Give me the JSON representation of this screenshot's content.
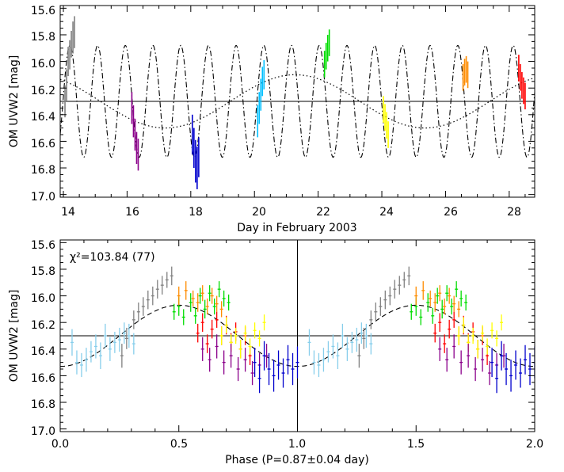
{
  "chart_data": [
    {
      "type": "line",
      "panel": "top",
      "xlabel": "Day in February 2003",
      "ylabel": "OM UVW2 [mag]",
      "xlim": [
        13.9,
        28.8
      ],
      "ylim": [
        17.02,
        15.58
      ],
      "y_inverted": true,
      "xticks": [
        "14",
        "16",
        "18",
        "20",
        "22",
        "24",
        "26",
        "28"
      ],
      "yticks": [
        "15.6",
        "15.8",
        "16.0",
        "16.2",
        "16.4",
        "16.6",
        "16.8",
        "17.0"
      ],
      "reference_line_mag": 16.3,
      "model_short": {
        "mean": 16.3,
        "amplitude": 0.42,
        "period_day": 0.87,
        "phase_zero_day": 13.77,
        "style": "dash-dot"
      },
      "model_long": {
        "mean": 16.3,
        "amplitude": 0.2,
        "period_day": 8.15,
        "min_day": 17.2,
        "style": "dotted"
      },
      "series": [
        {
          "color": "#808080",
          "x": [
            14.05,
            14.1,
            14.15,
            14.2,
            14.25,
            14.3,
            14.35
          ],
          "y": [
            16.3,
            16.18,
            16.0,
            15.95,
            15.87,
            15.82,
            15.78
          ],
          "err": [
            0.12,
            0.12,
            0.11,
            0.11,
            0.1,
            0.12,
            0.12
          ]
        },
        {
          "color": "#8b008b",
          "x": [
            16.15,
            16.2,
            16.25,
            16.3,
            16.35
          ],
          "y": [
            16.35,
            16.45,
            16.55,
            16.65,
            16.7
          ],
          "err": [
            0.12,
            0.12,
            0.12,
            0.12,
            0.12
          ]
        },
        {
          "color": "#0000cd",
          "x": [
            18.05,
            18.1,
            18.15,
            18.2,
            18.25
          ],
          "y": [
            16.55,
            16.65,
            16.75,
            16.8,
            16.72
          ],
          "err": [
            0.15,
            0.15,
            0.16,
            0.16,
            0.15
          ]
        },
        {
          "color": "#00bfff",
          "x": [
            20.1,
            20.15,
            20.2,
            20.25,
            20.3
          ],
          "y": [
            16.45,
            16.35,
            16.25,
            16.15,
            16.1
          ],
          "err": [
            0.12,
            0.12,
            0.12,
            0.11,
            0.11
          ]
        },
        {
          "color": "#00dd00",
          "x": [
            22.2,
            22.25,
            22.3,
            22.35
          ],
          "y": [
            16.02,
            15.96,
            15.9,
            15.86
          ],
          "err": [
            0.1,
            0.1,
            0.1,
            0.1
          ]
        },
        {
          "color": "#ffff00",
          "x": [
            24.05,
            24.1,
            24.15,
            24.2
          ],
          "y": [
            16.36,
            16.42,
            16.48,
            16.55
          ],
          "err": [
            0.1,
            0.1,
            0.1,
            0.1
          ]
        },
        {
          "color": "#ff8c00",
          "x": [
            26.55,
            26.6,
            26.65,
            26.7
          ],
          "y": [
            16.12,
            16.08,
            16.06,
            16.1
          ],
          "err": [
            0.1,
            0.1,
            0.1,
            0.1
          ]
        },
        {
          "color": "#ff0000",
          "x": [
            28.3,
            28.35,
            28.4,
            28.45,
            28.5
          ],
          "y": [
            16.05,
            16.12,
            16.18,
            16.22,
            16.26
          ],
          "err": [
            0.1,
            0.1,
            0.1,
            0.1,
            0.1
          ]
        }
      ]
    },
    {
      "type": "scatter",
      "panel": "bottom",
      "xlabel": "Phase (P=0.87±0.04 day)",
      "ylabel": "OM UVW2 [mag]",
      "annotation": "χ²=103.84  (77)",
      "xlim": [
        0.0,
        2.0
      ],
      "ylim": [
        17.02,
        15.58
      ],
      "y_inverted": true,
      "xticks": [
        "0.0",
        "0.5",
        "1.0",
        "1.5",
        "2.0"
      ],
      "yticks": [
        "15.6",
        "15.8",
        "16.0",
        "16.2",
        "16.4",
        "16.6",
        "16.8",
        "17.0"
      ],
      "reference_line_mag": 16.3,
      "reference_line_phase": 1.0,
      "model": {
        "mean": 16.3,
        "amplitude": 0.23,
        "max_phase": 0.5,
        "style": "dashed"
      },
      "series": [
        {
          "color": "#87ceeb",
          "x": [
            0.05,
            0.07,
            0.09,
            0.11,
            0.13,
            0.15,
            0.17,
            0.19,
            0.21,
            0.23,
            0.25,
            0.27,
            0.29,
            0.31
          ],
          "y": [
            16.35,
            16.5,
            16.52,
            16.48,
            16.42,
            16.38,
            16.45,
            16.3,
            16.4,
            16.35,
            16.33,
            16.28,
            16.3,
            16.36
          ],
          "err": [
            0.1,
            0.09,
            0.09,
            0.09,
            0.08,
            0.09,
            0.1,
            0.09,
            0.09,
            0.08,
            0.09,
            0.08,
            0.09,
            0.08
          ]
        },
        {
          "color": "#808080",
          "x": [
            0.26,
            0.28,
            0.31,
            0.33,
            0.35,
            0.37,
            0.39,
            0.41,
            0.43,
            0.45,
            0.47
          ],
          "y": [
            16.45,
            16.32,
            16.18,
            16.12,
            16.08,
            16.03,
            16.0,
            15.95,
            15.92,
            15.88,
            15.85
          ],
          "err": [
            0.09,
            0.08,
            0.07,
            0.07,
            0.07,
            0.07,
            0.07,
            0.07,
            0.07,
            0.06,
            0.07
          ]
        },
        {
          "color": "#00dd00",
          "x": [
            0.48,
            0.5,
            0.52,
            0.55,
            0.57,
            0.59,
            0.61,
            0.63,
            0.65,
            0.67,
            0.69,
            0.71
          ],
          "y": [
            16.12,
            16.08,
            16.16,
            16.05,
            16.15,
            16.0,
            16.1,
            15.98,
            16.08,
            15.95,
            16.02,
            16.05
          ],
          "err": [
            0.06,
            0.07,
            0.06,
            0.07,
            0.06,
            0.06,
            0.07,
            0.06,
            0.06,
            0.06,
            0.06,
            0.06
          ]
        },
        {
          "color": "#ff8c00",
          "x": [
            0.5,
            0.53,
            0.56,
            0.58,
            0.6,
            0.62,
            0.64,
            0.66,
            0.68
          ],
          "y": [
            16.0,
            15.96,
            16.02,
            16.05,
            15.98,
            16.08,
            16.0,
            16.06,
            16.1
          ],
          "err": [
            0.07,
            0.07,
            0.06,
            0.07,
            0.06,
            0.06,
            0.06,
            0.06,
            0.06
          ]
        },
        {
          "color": "#ff0000",
          "x": [
            0.58,
            0.6,
            0.62,
            0.64,
            0.66,
            0.68,
            0.7,
            0.72,
            0.74,
            0.76,
            0.78,
            0.8
          ],
          "y": [
            16.28,
            16.2,
            16.36,
            16.25,
            16.18,
            16.3,
            16.22,
            16.35,
            16.27,
            16.4,
            16.3,
            16.45
          ],
          "err": [
            0.07,
            0.07,
            0.07,
            0.07,
            0.06,
            0.07,
            0.07,
            0.07,
            0.07,
            0.07,
            0.07,
            0.07
          ]
        },
        {
          "color": "#ffff00",
          "x": [
            0.68,
            0.7,
            0.72,
            0.74,
            0.76,
            0.78,
            0.8,
            0.82,
            0.84,
            0.86
          ],
          "y": [
            16.3,
            16.22,
            16.35,
            16.3,
            16.4,
            16.28,
            16.38,
            16.26,
            16.32,
            16.2
          ],
          "err": [
            0.07,
            0.06,
            0.06,
            0.06,
            0.07,
            0.06,
            0.06,
            0.06,
            0.06,
            0.06
          ]
        },
        {
          "color": "#8b008b",
          "x": [
            0.6,
            0.63,
            0.66,
            0.69,
            0.72,
            0.75,
            0.78,
            0.81,
            0.84,
            0.87
          ],
          "y": [
            16.4,
            16.48,
            16.38,
            16.5,
            16.45,
            16.55,
            16.48,
            16.58,
            16.52,
            16.45
          ],
          "err": [
            0.09,
            0.09,
            0.09,
            0.09,
            0.09,
            0.09,
            0.09,
            0.09,
            0.09,
            0.09
          ]
        },
        {
          "color": "#0000cd",
          "x": [
            0.82,
            0.84,
            0.86,
            0.88,
            0.9,
            0.92,
            0.94,
            0.96,
            0.98,
            1.0
          ],
          "y": [
            16.5,
            16.62,
            16.45,
            16.55,
            16.6,
            16.52,
            16.58,
            16.48,
            16.55,
            16.5
          ],
          "err": [
            0.11,
            0.11,
            0.11,
            0.12,
            0.12,
            0.11,
            0.11,
            0.11,
            0.12,
            0.12
          ]
        }
      ]
    }
  ]
}
